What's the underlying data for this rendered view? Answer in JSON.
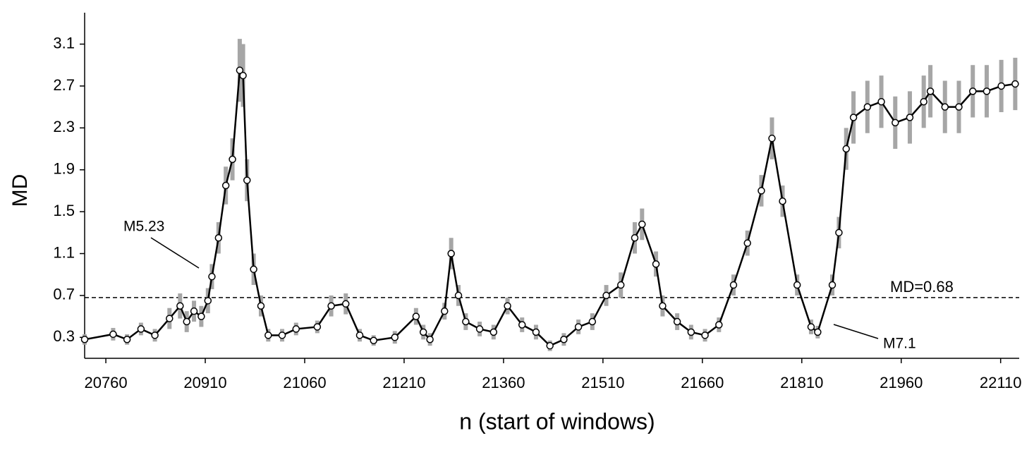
{
  "chart_data": {
    "type": "line",
    "xlabel": "n (start of  windows)",
    "ylabel": "MD",
    "x": [
      20728,
      20771,
      20792,
      20813,
      20834,
      20856,
      20872,
      20882,
      20893,
      20904,
      20914,
      20920,
      20930,
      20941,
      20951,
      20962,
      20967,
      20973,
      20983,
      20994,
      21005,
      21026,
      21047,
      21079,
      21100,
      21122,
      21143,
      21164,
      21196,
      21228,
      21239,
      21249,
      21271,
      21281,
      21292,
      21303,
      21324,
      21345,
      21366,
      21388,
      21409,
      21430,
      21451,
      21473,
      21494,
      21515,
      21537,
      21558,
      21569,
      21590,
      21600,
      21622,
      21643,
      21664,
      21685,
      21707,
      21728,
      21749,
      21765,
      21781,
      21803,
      21824,
      21834,
      21856,
      21866,
      21877,
      21888,
      21909,
      21930,
      21951,
      21973,
      21994,
      22004,
      22026,
      22047,
      22068,
      22089,
      22111,
      22132
    ],
    "series": [
      {
        "color": "#000000",
        "values": [
          0.28,
          0.33,
          0.28,
          0.38,
          0.32,
          0.48,
          0.6,
          0.45,
          0.55,
          0.5,
          0.65,
          0.88,
          1.25,
          1.75,
          2.0,
          2.85,
          2.8,
          1.8,
          0.95,
          0.6,
          0.32,
          0.32,
          0.38,
          0.4,
          0.6,
          0.62,
          0.32,
          0.27,
          0.3,
          0.5,
          0.35,
          0.28,
          0.55,
          1.1,
          0.7,
          0.45,
          0.38,
          0.35,
          0.6,
          0.42,
          0.35,
          0.22,
          0.28,
          0.4,
          0.45,
          0.7,
          0.8,
          1.25,
          1.38,
          1.0,
          0.6,
          0.45,
          0.35,
          0.32,
          0.42,
          0.8,
          1.2,
          1.7,
          2.2,
          1.6,
          0.8,
          0.4,
          0.35,
          0.8,
          1.3,
          2.1,
          2.4,
          2.5,
          2.55,
          2.35,
          2.4,
          2.55,
          2.65,
          2.5,
          2.5,
          2.65,
          2.65,
          2.7,
          2.72
        ],
        "errors": [
          0.05,
          0.06,
          0.05,
          0.06,
          0.06,
          0.1,
          0.12,
          0.1,
          0.1,
          0.1,
          0.12,
          0.12,
          0.15,
          0.18,
          0.2,
          0.3,
          0.3,
          0.2,
          0.15,
          0.1,
          0.06,
          0.06,
          0.06,
          0.06,
          0.1,
          0.1,
          0.06,
          0.05,
          0.06,
          0.08,
          0.07,
          0.06,
          0.08,
          0.15,
          0.1,
          0.08,
          0.07,
          0.07,
          0.08,
          0.07,
          0.07,
          0.05,
          0.06,
          0.07,
          0.08,
          0.1,
          0.12,
          0.15,
          0.15,
          0.12,
          0.1,
          0.08,
          0.07,
          0.06,
          0.07,
          0.1,
          0.12,
          0.15,
          0.2,
          0.15,
          0.1,
          0.07,
          0.06,
          0.1,
          0.15,
          0.2,
          0.25,
          0.25,
          0.25,
          0.25,
          0.25,
          0.25,
          0.25,
          0.25,
          0.25,
          0.25,
          0.25,
          0.25,
          0.25
        ],
        "error_color": "#a6a6a6"
      }
    ],
    "xlim": [
      20728,
      22138
    ],
    "ylim": [
      0.1,
      3.4
    ],
    "xticks": [
      20760,
      20910,
      21060,
      21210,
      21360,
      21510,
      21660,
      21810,
      21960,
      22110
    ],
    "yticks": [
      0.3,
      0.7,
      1.1,
      1.5,
      1.9,
      2.3,
      2.7,
      3.1
    ],
    "hline": {
      "value": 0.68,
      "label": "MD=0.68"
    },
    "annotations": [
      {
        "text": "M5.23"
      },
      {
        "text": "M7.1"
      }
    ]
  }
}
